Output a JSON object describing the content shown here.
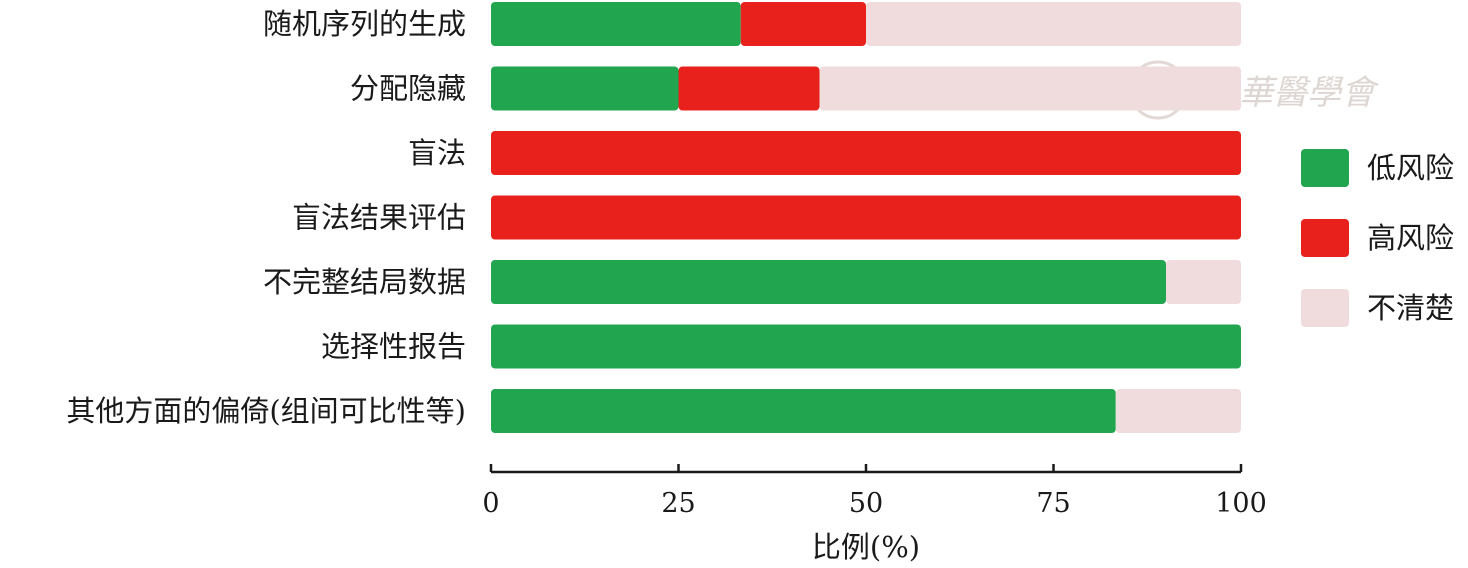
{
  "chart_data": {
    "type": "bar",
    "orientation": "horizontal",
    "stacked": true,
    "categories": [
      "随机序列的生成",
      "分配隐藏",
      "盲法",
      "盲法结果评估",
      "不完整结局数据",
      "选择性报告",
      "其他方面的偏倚(组间可比性等)"
    ],
    "series": [
      {
        "name": "低风险",
        "color": "#21a64f",
        "values": [
          33.3,
          25,
          0,
          0,
          90,
          100,
          83.3
        ]
      },
      {
        "name": "高风险",
        "color": "#e8211d",
        "values": [
          16.7,
          18.8,
          100,
          100,
          0,
          0,
          0
        ]
      },
      {
        "name": "不清楚",
        "color": "#f0dcdc",
        "values": [
          50,
          56.2,
          0,
          0,
          10,
          0,
          16.7
        ]
      }
    ],
    "xlabel": "比例(%)",
    "xlim": [
      0,
      100
    ],
    "xticks": [
      0,
      25,
      50,
      75,
      100
    ],
    "grid": false,
    "legend_position": "right"
  },
  "watermark": {
    "text": "中華醫學會"
  }
}
